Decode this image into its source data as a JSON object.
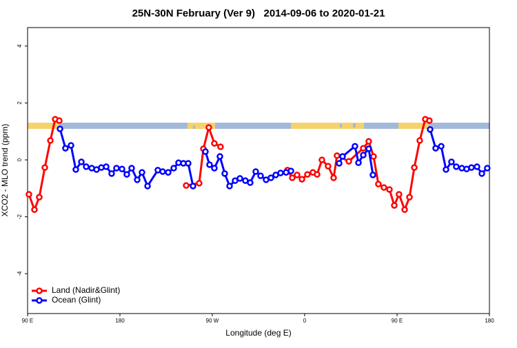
{
  "chart_data": {
    "type": "line",
    "title": "25N-30N February (Ver 9)   2014-09-06 to 2020-01-21",
    "xlabel": "Longitude (deg E)",
    "ylabel": "XCO2 - MLO trend (ppm)",
    "xlim": [
      90,
      540
    ],
    "xticks": [
      {
        "value": 90,
        "label": "90 E"
      },
      180,
      {
        "value": 270,
        "label": "90 W"
      },
      {
        "value": 360,
        "label": "0"
      },
      {
        "value": 450,
        "label": "90 E"
      },
      {
        "value": 540,
        "label": "180"
      }
    ],
    "ylim": [
      -5.4,
      4.65
    ],
    "yticks": [
      -4,
      -2,
      0,
      2,
      4
    ],
    "legend": "bottom-left",
    "series": [
      {
        "name": "Land (Nadir&Glint)",
        "color": "#ff0000",
        "x": [
          91.3,
          96.7,
          101.4,
          106.8,
          112.2,
          116.9,
          120.9,
          null,
          244.5,
          257.2,
          261.3,
          266.6,
          272.0,
          278.0,
          null,
          343.2,
          347.9,
          352.6,
          357.3,
          362.7,
          368.0,
          372.1,
          376.8,
          382.8,
          388.2,
          391.5,
          403.0,
          417.1,
          422.4,
          427.1,
          431.8,
          437.2,
          442.6,
          447.3,
          451.9,
          457.4,
          462.1,
          466.8,
          472.1,
          477.5,
          481.5
        ],
        "values": [
          -1.21,
          -1.75,
          -1.31,
          -0.27,
          0.68,
          1.43,
          1.38,
          null,
          -0.9,
          -0.82,
          0.39,
          1.14,
          0.58,
          0.46,
          null,
          -0.36,
          -0.63,
          -0.53,
          -0.68,
          -0.51,
          -0.44,
          -0.51,
          0.0,
          -0.22,
          -0.63,
          0.15,
          -0.05,
          0.41,
          0.65,
          0.12,
          -0.85,
          -0.97,
          -1.04,
          -1.6,
          -1.21,
          -1.75,
          -1.31,
          -0.27,
          0.68,
          1.43,
          1.38
        ]
      },
      {
        "name": "Ocean (Glint)",
        "color": "#0000ff",
        "x": [
          121.6,
          126.9,
          132.3,
          137.0,
          142.4,
          147.1,
          152.5,
          157.2,
          161.9,
          166.6,
          171.9,
          176.6,
          182.0,
          186.7,
          191.4,
          196.8,
          201.5,
          206.9,
          216.9,
          221.6,
          227.0,
          232.4,
          237.1,
          241.8,
          246.5,
          251.2,
          null,
          263.3,
          267.3,
          272.0,
          277.4,
          282.1,
          286.8,
          292.2,
          296.9,
          302.2,
          306.9,
          312.3,
          317.0,
          322.4,
          327.1,
          331.8,
          336.5,
          341.9,
          346.6,
          null,
          393.6,
          396.9,
          409.0,
          412.4,
          417.1,
          422.4,
          426.5,
          null,
          482.2,
          487.6,
          493.0,
          497.7,
          503.0,
          507.7,
          513.1,
          517.8,
          522.5,
          527.9,
          532.6,
          537.9
        ],
        "values": [
          1.09,
          0.41,
          0.51,
          -0.34,
          -0.07,
          -0.24,
          -0.29,
          -0.34,
          -0.27,
          -0.24,
          -0.48,
          -0.29,
          -0.32,
          -0.51,
          -0.29,
          -0.7,
          -0.44,
          -0.92,
          -0.36,
          -0.41,
          -0.44,
          -0.29,
          -0.1,
          -0.12,
          -0.12,
          -0.92,
          null,
          0.29,
          -0.17,
          -0.29,
          0.12,
          -0.48,
          -0.92,
          -0.73,
          -0.65,
          -0.73,
          -0.8,
          -0.41,
          -0.56,
          -0.7,
          -0.63,
          -0.53,
          -0.46,
          -0.44,
          -0.39,
          null,
          -0.12,
          0.12,
          0.48,
          -0.1,
          0.17,
          0.39,
          -0.53,
          null,
          1.07,
          0.41,
          0.48,
          -0.34,
          -0.07,
          -0.24,
          -0.29,
          -0.32,
          -0.27,
          -0.24,
          -0.48,
          -0.29
        ]
      }
    ]
  }
}
